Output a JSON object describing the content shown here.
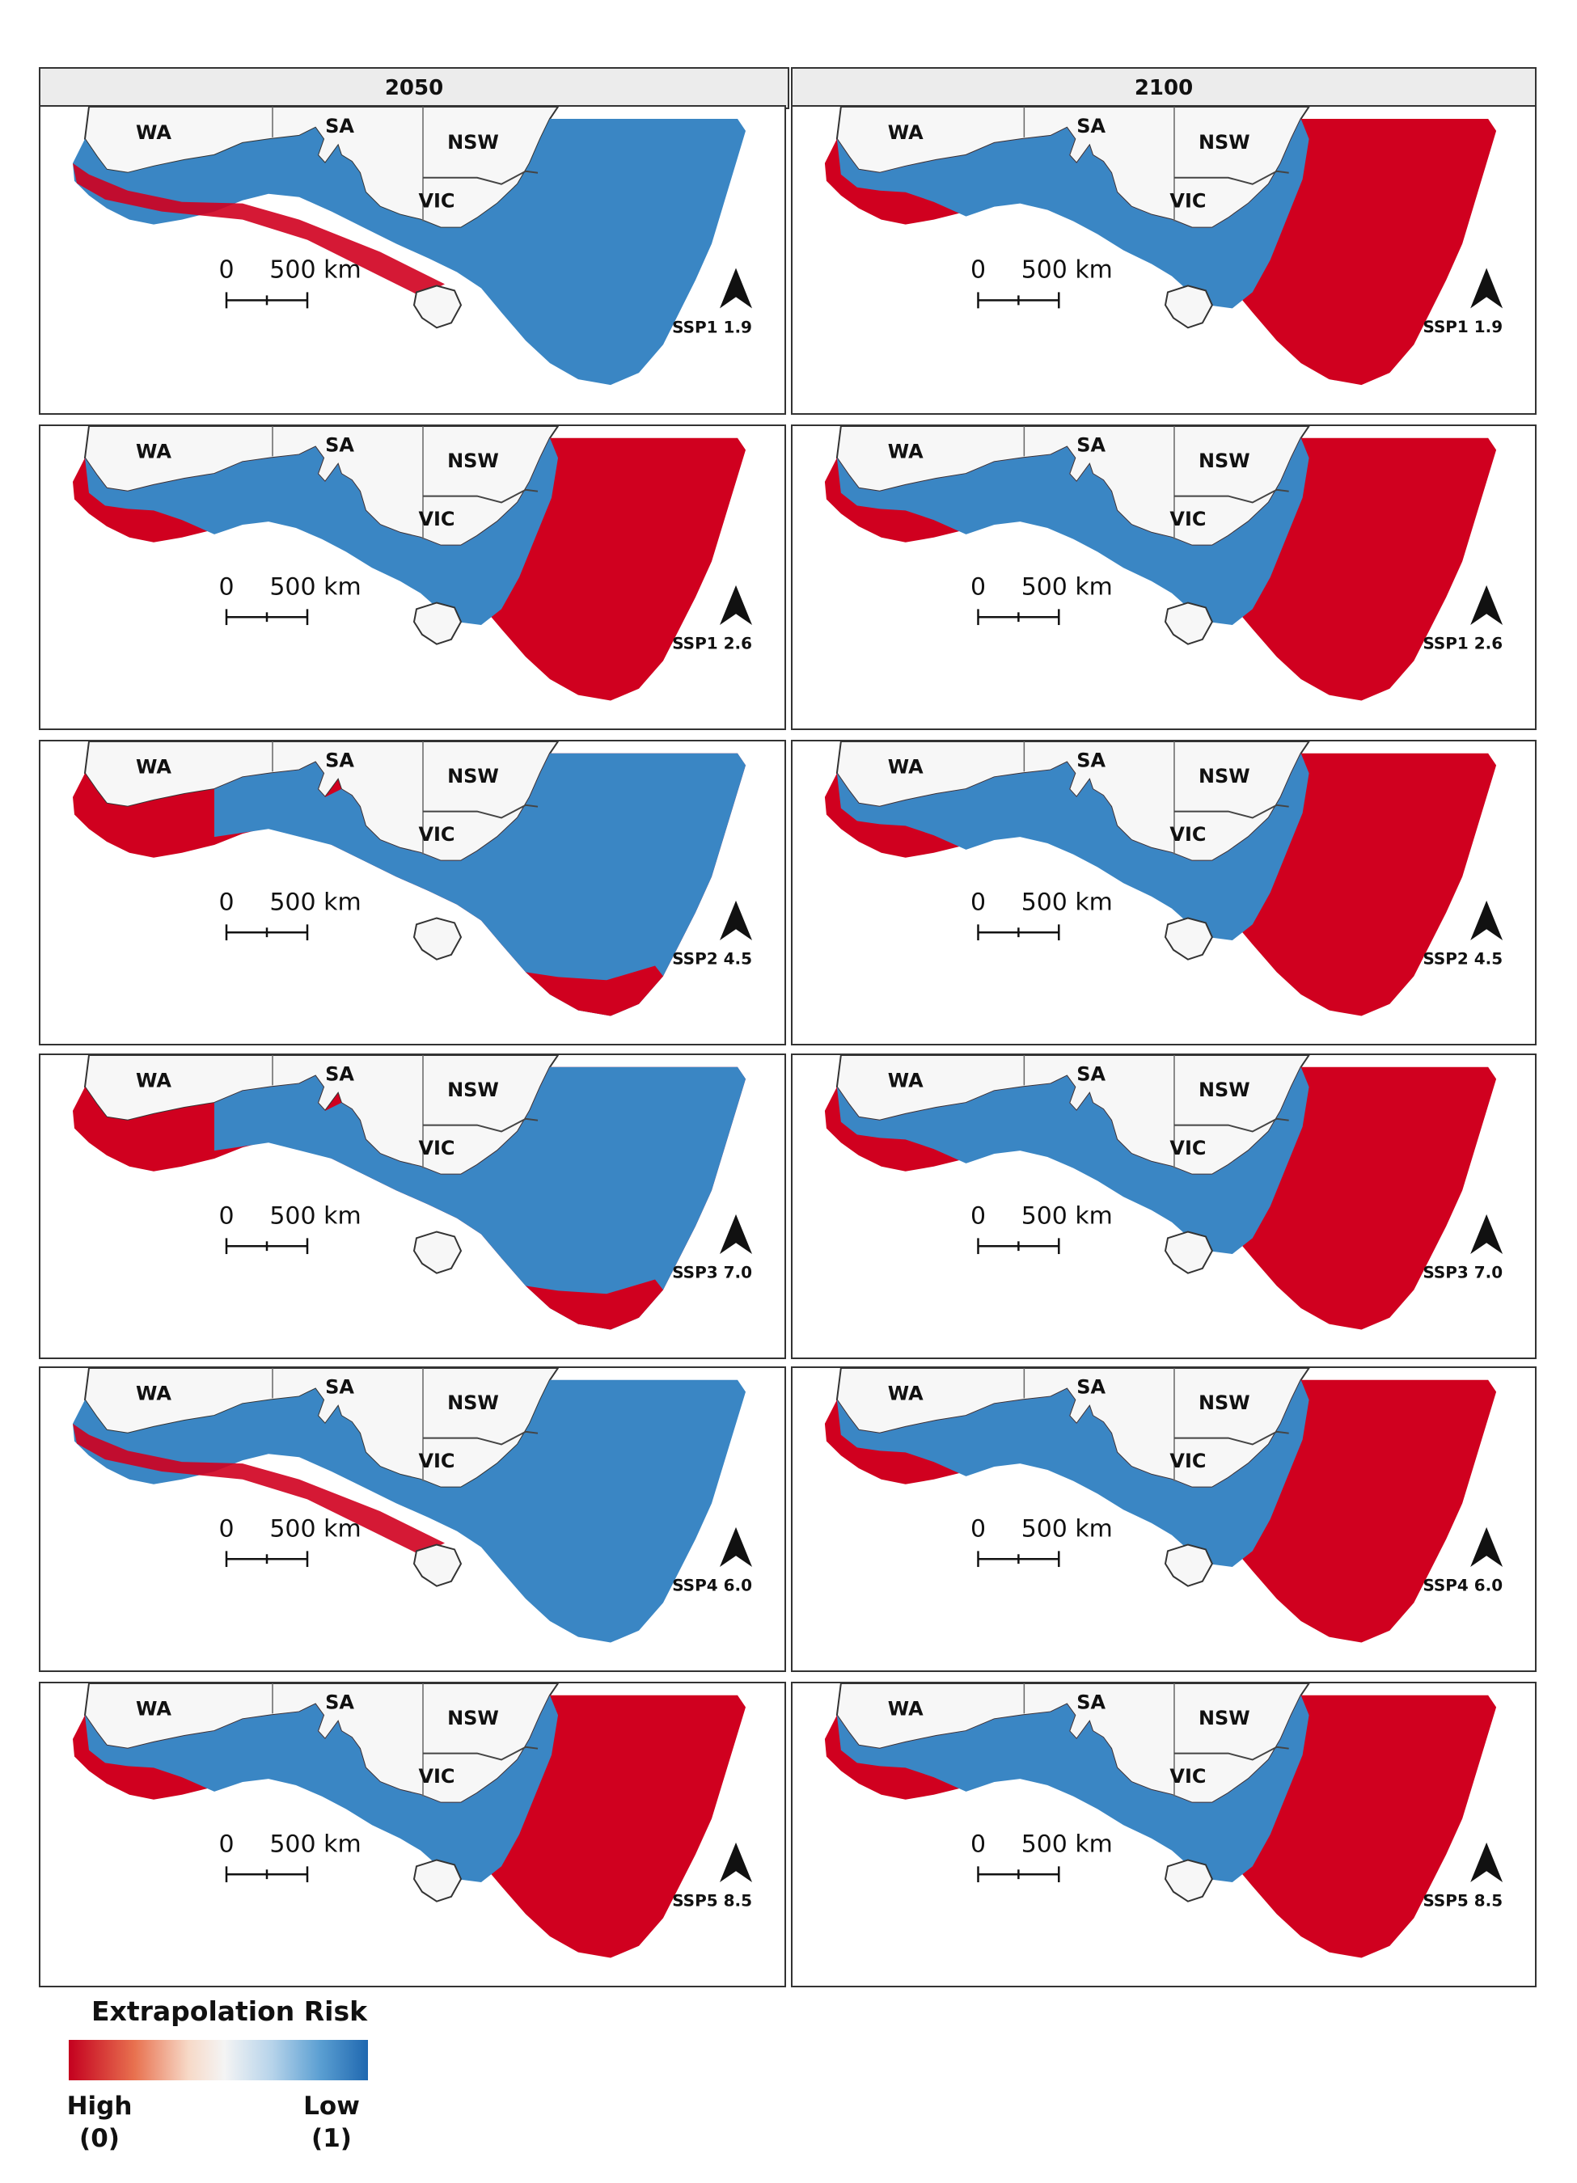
{
  "columns": [
    {
      "year": "2050"
    },
    {
      "year": "2100"
    }
  ],
  "state_labels": {
    "wa": "WA",
    "sa": "SA",
    "nsw": "NSW",
    "vic": "VIC"
  },
  "scale_bar": {
    "zero": "0",
    "distance": "500 km"
  },
  "scenarios": [
    "SSP1 1.9",
    "SSP1 2.6",
    "SSP2 4.5",
    "SSP3 7.0",
    "SSP4 6.0",
    "SSP5 8.5"
  ],
  "panels": [
    {
      "year": "2050",
      "scenario": "SSP1 1.9",
      "risk_pattern": "mostly-low"
    },
    {
      "year": "2100",
      "scenario": "SSP1 1.9",
      "risk_pattern": "high-outer"
    },
    {
      "year": "2050",
      "scenario": "SSP1 2.6",
      "risk_pattern": "high-outer"
    },
    {
      "year": "2100",
      "scenario": "SSP1 2.6",
      "risk_pattern": "high-outer"
    },
    {
      "year": "2050",
      "scenario": "SSP2 4.5",
      "risk_pattern": "high-west-south"
    },
    {
      "year": "2100",
      "scenario": "SSP2 4.5",
      "risk_pattern": "high-outer"
    },
    {
      "year": "2050",
      "scenario": "SSP3 7.0",
      "risk_pattern": "high-west-south"
    },
    {
      "year": "2100",
      "scenario": "SSP3 7.0",
      "risk_pattern": "high-outer"
    },
    {
      "year": "2050",
      "scenario": "SSP4 6.0",
      "risk_pattern": "mostly-low"
    },
    {
      "year": "2100",
      "scenario": "SSP4 6.0",
      "risk_pattern": "high-outer"
    },
    {
      "year": "2050",
      "scenario": "SSP5 8.5",
      "risk_pattern": "high-outer"
    },
    {
      "year": "2100",
      "scenario": "SSP5 8.5",
      "risk_pattern": "high-outer"
    }
  ],
  "legend": {
    "title": "Extrapolation Risk",
    "high_label": "High",
    "high_value": "(0)",
    "low_label": "Low",
    "low_value": "(1)",
    "colors": {
      "high": "#c4001f",
      "mid": "#f4f4f4",
      "low": "#1f68b0"
    }
  },
  "colors": {
    "land": "#f7f7f7",
    "high_risk": "#d0001f",
    "low_risk": "#3a86c4",
    "border": "#333333"
  }
}
